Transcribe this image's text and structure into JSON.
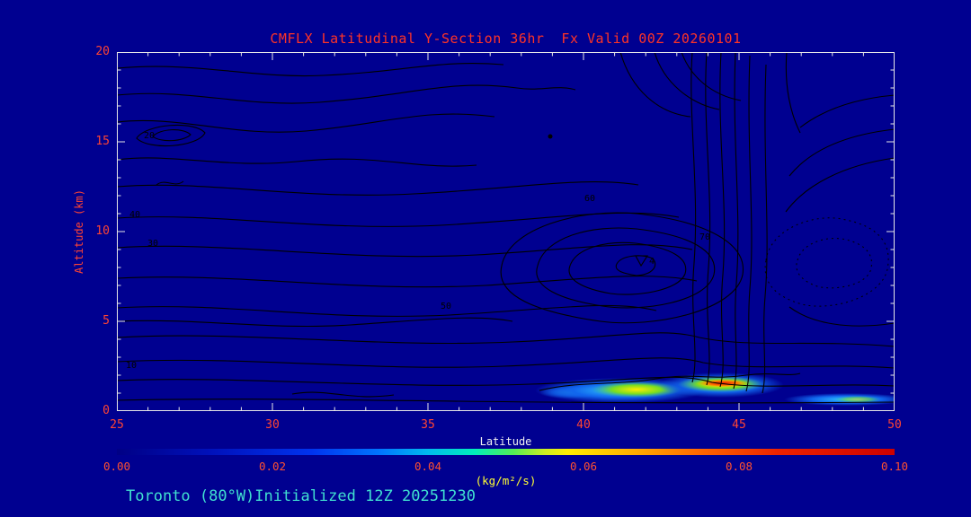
{
  "title": "CMFLX Latitudinal Y-Section 36hr  Fx Valid 00Z 20260101",
  "footer": "Toronto (80°W)Initialized 12Z 20251230",
  "axes": {
    "y": {
      "label": "Altitude (km)",
      "ticks": [
        "20",
        "15",
        "10",
        "5",
        "0"
      ]
    },
    "x": {
      "label": "Latitude",
      "ticks": [
        "25",
        "30",
        "35",
        "40",
        "45",
        "50"
      ]
    }
  },
  "colorbar": {
    "labels": [
      "0.00",
      "0.02",
      "0.04",
      "0.06",
      "0.08",
      "0.10"
    ],
    "units": "(kg/m²/s)"
  },
  "colors": {
    "background": "#000090",
    "title_red": "#FF3326",
    "tick_red": "#FF4433",
    "colorbar_label_orange": "#FF5030",
    "units_yellow": "#FFFF33",
    "footer_cyan": "#40E0D0",
    "axis_white": "#E8E8E8",
    "contour_black": "#000000"
  },
  "contour_labels": [
    {
      "v": "40"
    },
    {
      "v": "30"
    },
    {
      "v": "20"
    },
    {
      "v": "60"
    },
    {
      "v": "50"
    },
    {
      "v": "70"
    },
    {
      "v": "4"
    },
    {
      "v": "10"
    }
  ],
  "chart_data": {
    "type": "contour",
    "title": "CMFLX Latitudinal Y-Section 36hr  Fx Valid 00Z 20260101",
    "xlabel": "Latitude",
    "ylabel": "Altitude (km)",
    "xlim": [
      25,
      50
    ],
    "ylim": [
      0,
      20
    ],
    "x_major_ticks": [
      25,
      30,
      35,
      40,
      45,
      50
    ],
    "y_major_ticks": [
      0,
      5,
      10,
      15,
      20
    ],
    "grid": false,
    "line_contours": {
      "style": "black solid lines, some dotted closed cells on right side",
      "labeled_values": [
        4,
        10,
        20,
        30,
        40,
        50,
        60,
        70
      ],
      "notes": "dense near-vertical gradient zone near latitude 44-46 from surface to model top; closed low cell centered near latitude 41-42 at 7-9 km; dotted closed cell near latitude 47-48 at 8-10 km; nested small cell near latitude 25-26 at 15-16 km"
    },
    "fill": {
      "field": "CMFLX",
      "units": "kg/m²/s",
      "range": [
        0.0,
        0.1
      ],
      "colorbar_ticks": [
        0.0,
        0.02,
        0.04,
        0.06,
        0.08,
        0.1
      ],
      "features": [
        {
          "desc": "primary maximum (red core)",
          "lat": 44.7,
          "alt_km": 1.5,
          "value": 0.095
        },
        {
          "desc": "secondary maximum (yellow-green blob)",
          "lat": 42.0,
          "alt_km": 1.3,
          "value": 0.055
        },
        {
          "desc": "shallow cyan band",
          "lat_range": [
            47.5,
            50.0
          ],
          "alt_km": 0.7,
          "value": 0.035
        }
      ]
    },
    "forecast_hour": "36hr",
    "valid": "00Z 20260101",
    "init": "12Z 20251230",
    "section_location": "Toronto (80°W)"
  }
}
